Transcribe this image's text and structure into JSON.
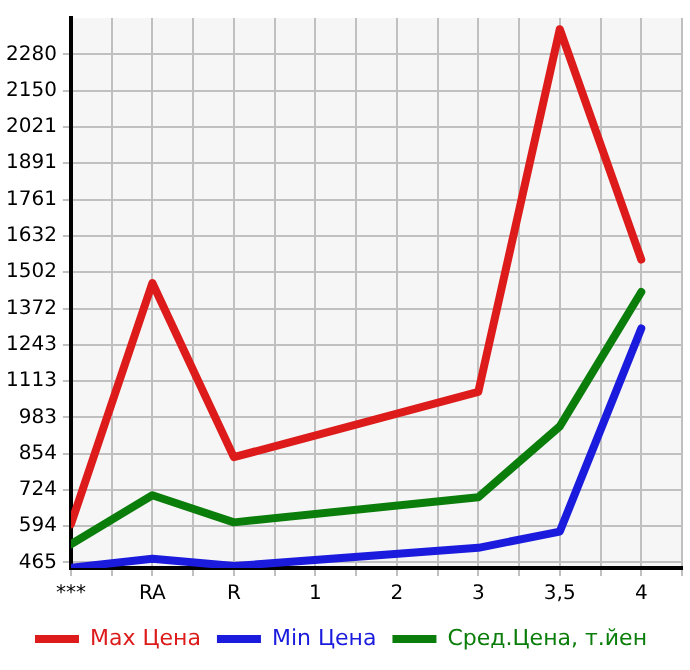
{
  "chart_data": {
    "type": "line",
    "categories": [
      "***",
      "RA",
      "R",
      "1",
      "2",
      "3",
      "3,5",
      "4"
    ],
    "series": [
      {
        "name": "Max Цена",
        "color": "#dd1b1b",
        "values": [
          601,
          1463,
          841,
          null,
          null,
          1074,
          2370,
          1547
        ]
      },
      {
        "name": "Min Цена",
        "color": "#1b1bdd",
        "values": [
          446,
          478,
          452,
          null,
          null,
          517,
          575,
          1301
        ]
      },
      {
        "name": "Сред.Цена, т.йен",
        "color": "#0a7d0a",
        "values": [
          530,
          705,
          608,
          null,
          null,
          698,
          951,
          1431
        ]
      }
    ],
    "ylim": [
      445,
      2410
    ],
    "yticks": [
      465,
      594,
      724,
      854,
      983,
      1113,
      1243,
      1372,
      1502,
      1632,
      1761,
      1891,
      2021,
      2150,
      2280
    ],
    "grid": true,
    "legend": "bottom",
    "marker": "none",
    "line_style": "solid"
  }
}
